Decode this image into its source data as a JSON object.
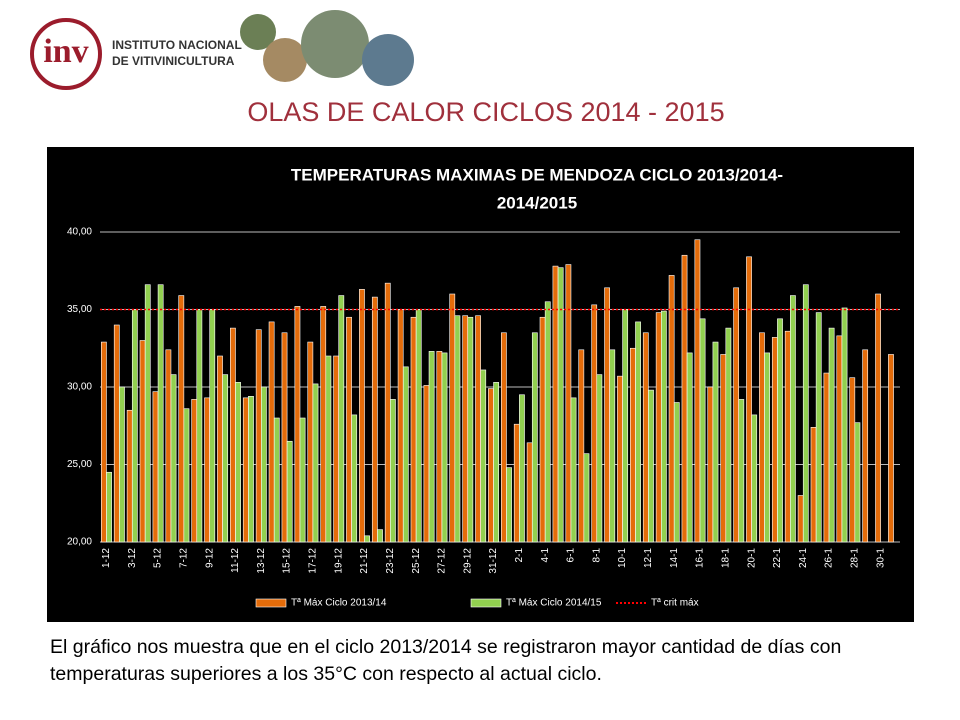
{
  "header": {
    "logo": "inv",
    "org": [
      "INSTITUTO NACIONAL",
      "DE VITIVINICULTURA"
    ],
    "title": "OLAS DE CALOR CICLOS 2014 - 2015"
  },
  "chart_data": {
    "type": "bar",
    "title": [
      "TEMPERATURAS MAXIMAS DE  MENDOZA CICLO 2013/2014-",
      "2014/2015"
    ],
    "categories": [
      "1-12",
      null,
      "3-12",
      null,
      "5-12",
      null,
      "7-12",
      null,
      "9-12",
      null,
      "11-12",
      null,
      "13-12",
      null,
      "15-12",
      null,
      "17-12",
      null,
      "19-12",
      null,
      "21-12",
      null,
      "23-12",
      null,
      "25-12",
      null,
      "27-12",
      null,
      "29-12",
      null,
      "31-12",
      null,
      "2-1",
      null,
      "4-1",
      null,
      "6-1",
      null,
      "8-1",
      null,
      "10-1",
      null,
      "12-1",
      null,
      "14-1",
      null,
      "16-1",
      null,
      "18-1",
      null,
      "20-1",
      null,
      "22-1",
      null,
      "24-1",
      null,
      "26-1",
      null,
      "28-1",
      null,
      "30-1",
      null
    ],
    "series": [
      {
        "name": "Tª Máx Ciclo 2013/14",
        "color": "#e46c0a",
        "values": [
          32.9,
          34.0,
          28.5,
          33.0,
          29.7,
          32.4,
          35.9,
          29.2,
          29.3,
          32.0,
          33.8,
          29.3,
          33.7,
          34.2,
          33.5,
          35.2,
          32.9,
          35.2,
          32.0,
          34.5,
          36.3,
          35.8,
          36.7,
          35.0,
          34.5,
          30.1,
          32.3,
          36.0,
          34.6,
          34.6,
          29.9,
          33.5,
          27.6,
          26.4,
          34.5,
          37.8,
          37.9,
          32.4,
          35.3,
          36.4,
          30.7,
          32.5,
          33.5,
          34.8,
          37.2,
          38.5,
          39.5,
          30.0,
          32.1,
          36.4,
          38.4,
          33.5,
          33.2,
          33.6,
          23.0,
          27.4,
          30.9,
          33.3,
          30.6,
          32.4,
          36.0,
          32.1
        ]
      },
      {
        "name": "Tª Máx Ciclo 2014/15",
        "color": "#92d050",
        "values": [
          24.5,
          30.0,
          35.0,
          36.6,
          36.6,
          30.8,
          28.6,
          35.0,
          35.0,
          30.8,
          30.3,
          29.4,
          30.0,
          28.0,
          26.5,
          28.0,
          30.2,
          32.0,
          35.9,
          28.2,
          20.4,
          20.8,
          29.2,
          31.3,
          35.0,
          32.3,
          32.2,
          34.6,
          34.5,
          31.1,
          30.3,
          24.8,
          29.5,
          33.5,
          35.5,
          37.7,
          29.3,
          25.7,
          30.8,
          32.4,
          35.0,
          34.2,
          29.8,
          34.9,
          29.0,
          32.2,
          34.4,
          32.9,
          33.8,
          29.2,
          28.2,
          32.2,
          34.4,
          35.9,
          36.6,
          34.8,
          33.8,
          35.1,
          27.7,
          null,
          null,
          null
        ]
      }
    ],
    "threshold": {
      "name": "Tª crit máx",
      "color": "#ff0000",
      "value": 35
    },
    "ylim": [
      20,
      40
    ],
    "yticks": [
      {
        "value": 20,
        "label": "20,00"
      },
      {
        "value": 25,
        "label": "25,00"
      },
      {
        "value": 30,
        "label": "30,00"
      },
      {
        "value": 35,
        "label": "35,00"
      },
      {
        "value": 40,
        "label": "40,00"
      }
    ],
    "grid": true,
    "legend": "bottom"
  },
  "caption": "El gráfico nos muestra que en el ciclo 2013/2014 se registraron mayor cantidad de días con temperaturas superiores a los 35°C con respecto al actual ciclo."
}
